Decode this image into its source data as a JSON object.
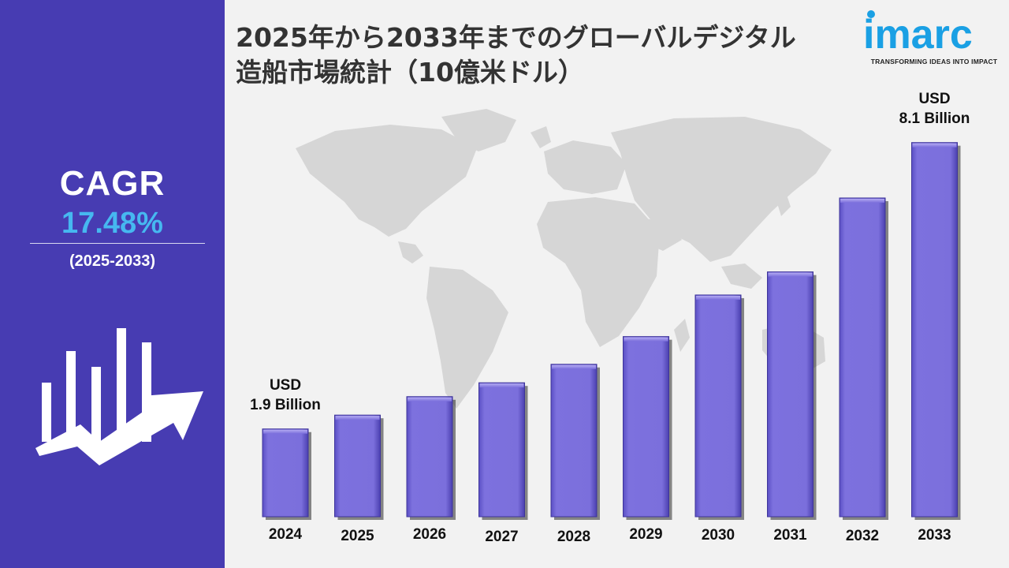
{
  "title_line1": "2025年から2033年までのグローバルデジタル",
  "title_line2": "造船市場統計（10億米ドル）",
  "logo": {
    "word": "imarc",
    "tagline": "TRANSFORMING IDEAS INTO IMPACT"
  },
  "cagr": {
    "label": "CAGR",
    "value": "17.48%",
    "period": "(2025-2033)"
  },
  "annotations": {
    "first_unit": "USD",
    "first_value": "1.9 Billion",
    "last_unit": "USD",
    "last_value": "8.1 Billion"
  },
  "colors": {
    "sidebar": "#473cb2",
    "bar": "#7b6fdc",
    "cagr_value": "#46b8f0",
    "logo": "#1aa0e4"
  },
  "chart_data": {
    "type": "bar",
    "categories": [
      "2024",
      "2025",
      "2026",
      "2027",
      "2028",
      "2029",
      "2030",
      "2031",
      "2032",
      "2033"
    ],
    "values": [
      1.9,
      2.2,
      2.6,
      2.9,
      3.3,
      3.9,
      4.8,
      5.3,
      6.9,
      8.1
    ],
    "ylim": [
      0,
      9
    ],
    "ylabel": "",
    "xlabel": "",
    "grid": false
  }
}
